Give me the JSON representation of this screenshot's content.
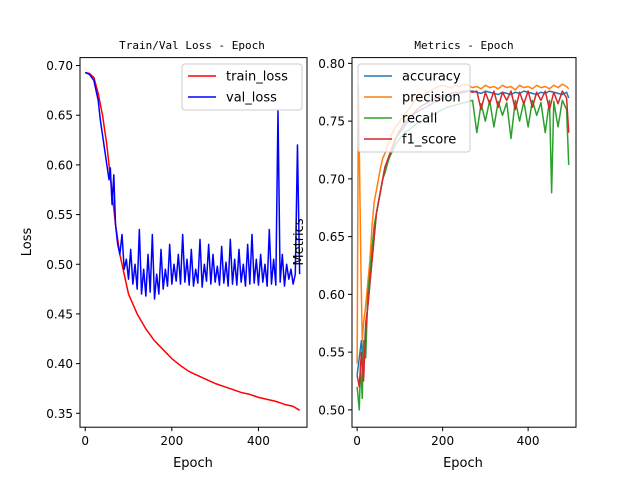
{
  "chart_data": [
    {
      "type": "line",
      "title": "Train/Val Loss - Epoch",
      "xlabel": "Epoch",
      "ylabel": "Loss",
      "xlim": [
        -12,
        512
      ],
      "ylim": [
        0.336,
        0.708
      ],
      "xticks": [
        0,
        200,
        400
      ],
      "yticks": [
        0.35,
        0.4,
        0.45,
        0.5,
        0.55,
        0.6,
        0.65,
        0.7
      ],
      "legend_position": "upper right",
      "grid": false,
      "series": [
        {
          "name": "train_loss",
          "color": "#ff0000",
          "x": [
            0,
            10,
            20,
            30,
            40,
            50,
            60,
            70,
            80,
            90,
            100,
            120,
            140,
            160,
            180,
            200,
            220,
            240,
            260,
            280,
            300,
            320,
            340,
            360,
            380,
            400,
            420,
            440,
            460,
            480,
            495
          ],
          "y": [
            0.693,
            0.692,
            0.688,
            0.672,
            0.65,
            0.62,
            0.58,
            0.54,
            0.51,
            0.49,
            0.47,
            0.45,
            0.435,
            0.423,
            0.414,
            0.405,
            0.398,
            0.392,
            0.388,
            0.384,
            0.38,
            0.377,
            0.374,
            0.371,
            0.369,
            0.366,
            0.364,
            0.362,
            0.359,
            0.357,
            0.353
          ]
        },
        {
          "name": "val_loss",
          "color": "#0000ff",
          "x": [
            0,
            10,
            20,
            30,
            35,
            40,
            45,
            50,
            55,
            58,
            62,
            66,
            70,
            75,
            80,
            85,
            90,
            95,
            100,
            105,
            110,
            115,
            120,
            125,
            130,
            135,
            140,
            145,
            150,
            155,
            160,
            165,
            170,
            175,
            180,
            185,
            190,
            195,
            200,
            205,
            210,
            215,
            220,
            225,
            230,
            235,
            240,
            245,
            250,
            255,
            260,
            265,
            270,
            275,
            280,
            285,
            290,
            295,
            300,
            305,
            310,
            315,
            320,
            325,
            330,
            335,
            340,
            345,
            350,
            355,
            360,
            365,
            370,
            375,
            380,
            385,
            390,
            395,
            400,
            405,
            410,
            415,
            420,
            425,
            430,
            435,
            440,
            445,
            450,
            455,
            460,
            465,
            470,
            475,
            480,
            485,
            490,
            495
          ],
          "y": [
            0.693,
            0.691,
            0.685,
            0.665,
            0.645,
            0.63,
            0.615,
            0.6,
            0.585,
            0.597,
            0.56,
            0.59,
            0.54,
            0.52,
            0.51,
            0.53,
            0.495,
            0.505,
            0.485,
            0.515,
            0.48,
            0.5,
            0.475,
            0.535,
            0.47,
            0.495,
            0.468,
            0.51,
            0.472,
            0.53,
            0.465,
            0.49,
            0.47,
            0.515,
            0.475,
            0.495,
            0.478,
            0.52,
            0.48,
            0.5,
            0.483,
            0.51,
            0.48,
            0.53,
            0.482,
            0.505,
            0.479,
            0.515,
            0.478,
            0.495,
            0.481,
            0.525,
            0.477,
            0.5,
            0.483,
            0.52,
            0.48,
            0.51,
            0.482,
            0.498,
            0.479,
            0.518,
            0.481,
            0.502,
            0.478,
            0.525,
            0.48,
            0.505,
            0.479,
            0.515,
            0.482,
            0.5,
            0.478,
            0.52,
            0.48,
            0.53,
            0.481,
            0.505,
            0.479,
            0.51,
            0.482,
            0.5,
            0.478,
            0.535,
            0.48,
            0.505,
            0.479,
            0.655,
            0.482,
            0.51,
            0.478,
            0.5,
            0.485,
            0.495,
            0.48,
            0.49,
            0.62,
            0.49
          ]
        }
      ]
    },
    {
      "type": "line",
      "title": "Metrics - Epoch",
      "xlabel": "Epoch",
      "ylabel": "Metrics",
      "xlim": [
        -12,
        512
      ],
      "ylim": [
        0.485,
        0.805
      ],
      "xticks": [
        0,
        200,
        400
      ],
      "yticks": [
        0.5,
        0.55,
        0.6,
        0.65,
        0.7,
        0.75,
        0.8
      ],
      "legend_position": "upper left",
      "grid": false,
      "series": [
        {
          "name": "accuracy",
          "color": "#1f77b4",
          "x": [
            0,
            5,
            10,
            15,
            20,
            25,
            30,
            35,
            40,
            45,
            50,
            55,
            60,
            65,
            70,
            75,
            80,
            90,
            100,
            110,
            120,
            130,
            140,
            150,
            160,
            170,
            180,
            190,
            200,
            210,
            220,
            230,
            240,
            250,
            260,
            270,
            280,
            290,
            300,
            310,
            320,
            330,
            340,
            350,
            360,
            370,
            380,
            390,
            400,
            410,
            420,
            430,
            440,
            450,
            460,
            470,
            480,
            490,
            495
          ],
          "y": [
            0.53,
            0.545,
            0.56,
            0.535,
            0.575,
            0.59,
            0.61,
            0.63,
            0.65,
            0.67,
            0.68,
            0.69,
            0.7,
            0.71,
            0.715,
            0.72,
            0.725,
            0.735,
            0.74,
            0.745,
            0.75,
            0.755,
            0.758,
            0.76,
            0.762,
            0.764,
            0.766,
            0.768,
            0.77,
            0.771,
            0.772,
            0.773,
            0.774,
            0.775,
            0.776,
            0.776,
            0.775,
            0.774,
            0.776,
            0.775,
            0.774,
            0.773,
            0.775,
            0.774,
            0.773,
            0.775,
            0.774,
            0.776,
            0.775,
            0.774,
            0.773,
            0.775,
            0.774,
            0.776,
            0.775,
            0.774,
            0.773,
            0.775,
            0.77
          ]
        },
        {
          "name": "precision",
          "color": "#ff7f0e",
          "x": [
            0,
            3,
            6,
            9,
            12,
            15,
            20,
            25,
            30,
            35,
            40,
            45,
            50,
            55,
            60,
            65,
            70,
            75,
            80,
            90,
            100,
            110,
            120,
            130,
            140,
            150,
            160,
            170,
            180,
            190,
            200,
            210,
            220,
            230,
            240,
            250,
            260,
            270,
            280,
            290,
            300,
            310,
            320,
            330,
            340,
            350,
            360,
            370,
            380,
            390,
            400,
            410,
            420,
            430,
            440,
            450,
            460,
            470,
            480,
            490,
            495
          ],
          "y": [
            0.54,
            0.78,
            0.7,
            0.62,
            0.56,
            0.575,
            0.59,
            0.61,
            0.63,
            0.66,
            0.68,
            0.69,
            0.7,
            0.71,
            0.718,
            0.722,
            0.728,
            0.732,
            0.738,
            0.745,
            0.75,
            0.755,
            0.76,
            0.765,
            0.77,
            0.772,
            0.774,
            0.776,
            0.778,
            0.78,
            0.781,
            0.78,
            0.779,
            0.781,
            0.78,
            0.782,
            0.781,
            0.779,
            0.78,
            0.778,
            0.781,
            0.779,
            0.78,
            0.778,
            0.781,
            0.779,
            0.78,
            0.777,
            0.781,
            0.779,
            0.78,
            0.778,
            0.781,
            0.779,
            0.78,
            0.778,
            0.781,
            0.779,
            0.782,
            0.78,
            0.778
          ]
        },
        {
          "name": "recall",
          "color": "#2ca02c",
          "x": [
            0,
            5,
            8,
            12,
            15,
            20,
            25,
            30,
            35,
            40,
            45,
            50,
            55,
            60,
            65,
            70,
            75,
            80,
            90,
            100,
            110,
            120,
            130,
            140,
            150,
            160,
            170,
            180,
            190,
            200,
            210,
            220,
            230,
            240,
            250,
            260,
            270,
            280,
            290,
            300,
            310,
            320,
            330,
            340,
            350,
            360,
            370,
            380,
            390,
            400,
            410,
            420,
            430,
            440,
            450,
            455,
            460,
            470,
            480,
            490,
            495
          ],
          "y": [
            0.52,
            0.5,
            0.54,
            0.51,
            0.56,
            0.545,
            0.6,
            0.62,
            0.64,
            0.66,
            0.67,
            0.68,
            0.69,
            0.7,
            0.705,
            0.712,
            0.718,
            0.722,
            0.73,
            0.735,
            0.74,
            0.742,
            0.745,
            0.748,
            0.75,
            0.752,
            0.754,
            0.756,
            0.758,
            0.76,
            0.762,
            0.763,
            0.764,
            0.765,
            0.766,
            0.767,
            0.768,
            0.74,
            0.765,
            0.75,
            0.768,
            0.745,
            0.767,
            0.755,
            0.766,
            0.735,
            0.768,
            0.75,
            0.767,
            0.745,
            0.768,
            0.755,
            0.766,
            0.74,
            0.768,
            0.688,
            0.767,
            0.745,
            0.768,
            0.76,
            0.712
          ]
        },
        {
          "name": "f1_score",
          "color": "#d62728",
          "x": [
            0,
            5,
            10,
            15,
            20,
            25,
            30,
            35,
            40,
            45,
            50,
            55,
            60,
            65,
            70,
            75,
            80,
            90,
            100,
            110,
            120,
            130,
            140,
            150,
            160,
            170,
            180,
            190,
            200,
            210,
            220,
            230,
            240,
            250,
            260,
            270,
            280,
            290,
            300,
            310,
            320,
            330,
            340,
            350,
            360,
            370,
            380,
            390,
            400,
            410,
            420,
            430,
            440,
            450,
            460,
            470,
            480,
            490,
            495
          ],
          "y": [
            0.53,
            0.52,
            0.55,
            0.525,
            0.57,
            0.59,
            0.61,
            0.63,
            0.65,
            0.67,
            0.68,
            0.69,
            0.7,
            0.71,
            0.715,
            0.72,
            0.725,
            0.735,
            0.742,
            0.748,
            0.752,
            0.756,
            0.76,
            0.763,
            0.765,
            0.767,
            0.769,
            0.771,
            0.772,
            0.773,
            0.774,
            0.775,
            0.775,
            0.776,
            0.776,
            0.775,
            0.776,
            0.76,
            0.775,
            0.765,
            0.776,
            0.762,
            0.775,
            0.768,
            0.776,
            0.76,
            0.775,
            0.765,
            0.776,
            0.762,
            0.775,
            0.768,
            0.776,
            0.76,
            0.775,
            0.765,
            0.776,
            0.77,
            0.74
          ]
        }
      ]
    }
  ]
}
